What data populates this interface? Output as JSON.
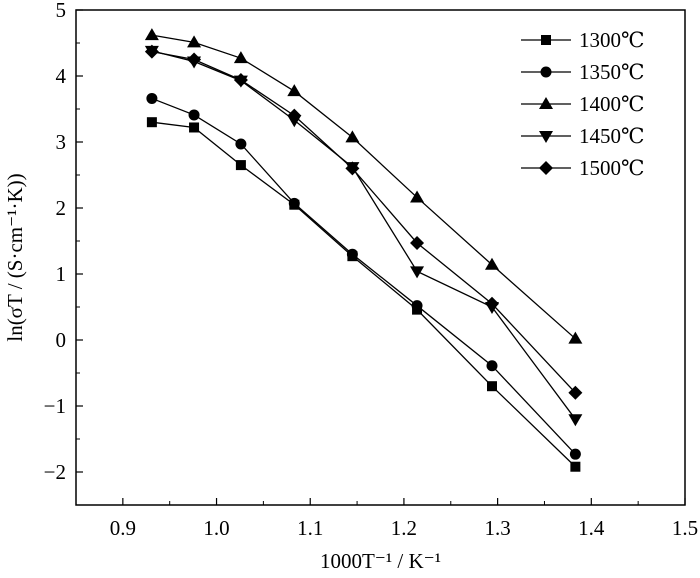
{
  "chart_data": {
    "type": "line",
    "title": "",
    "xlabel": "1000T⁻¹ / K⁻¹",
    "ylabel": "ln(σT / (S·cm⁻¹·K))",
    "xlim": [
      0.85,
      1.5
    ],
    "ylim": [
      -2.5,
      5
    ],
    "x_ticks": [
      "0.9",
      "1.0",
      "1.1",
      "1.2",
      "1.3",
      "1.4",
      "1.5"
    ],
    "y_ticks": [
      "-2",
      "-1",
      "0",
      "1",
      "2",
      "3",
      "4",
      "5"
    ],
    "grid": false,
    "legend_position": "top-right",
    "series": [
      {
        "name": "1300℃",
        "marker": "square",
        "x": [
          0.931,
          0.976,
          1.026,
          1.083,
          1.145,
          1.214,
          1.294,
          1.383
        ],
        "y": [
          3.3,
          3.22,
          2.65,
          2.05,
          1.27,
          0.46,
          -0.7,
          -1.92
        ]
      },
      {
        "name": "1350℃",
        "marker": "circle",
        "x": [
          0.931,
          0.976,
          1.026,
          1.083,
          1.145,
          1.214,
          1.294,
          1.383
        ],
        "y": [
          3.66,
          3.41,
          2.97,
          2.07,
          1.3,
          0.52,
          -0.39,
          -1.73
        ]
      },
      {
        "name": "1400℃",
        "marker": "triangle-up",
        "x": [
          0.931,
          0.976,
          1.026,
          1.083,
          1.145,
          1.214,
          1.294,
          1.383
        ],
        "y": [
          4.62,
          4.51,
          4.27,
          3.77,
          3.07,
          2.16,
          1.14,
          0.02
        ]
      },
      {
        "name": "1450℃",
        "marker": "triangle-down",
        "x": [
          0.931,
          0.976,
          1.026,
          1.083,
          1.145,
          1.214,
          1.294,
          1.383
        ],
        "y": [
          4.38,
          4.22,
          3.93,
          3.33,
          2.62,
          1.04,
          0.5,
          -1.2
        ]
      },
      {
        "name": "1500℃",
        "marker": "diamond",
        "x": [
          0.931,
          0.976,
          1.026,
          1.083,
          1.145,
          1.214,
          1.294,
          1.383
        ],
        "y": [
          4.37,
          4.25,
          3.94,
          3.4,
          2.6,
          1.47,
          0.55,
          -0.8
        ]
      }
    ]
  }
}
